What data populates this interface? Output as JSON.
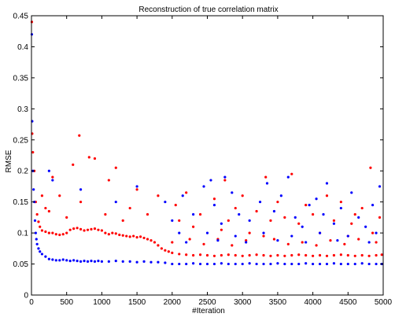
{
  "chart_data": {
    "type": "scatter",
    "title": "Reconstruction of true correlation matrix",
    "xlabel": "#Iteration",
    "ylabel": "RMSE",
    "xlim": [
      0,
      5000
    ],
    "ylim": [
      0,
      0.45
    ],
    "x_ticks": [
      0,
      500,
      1000,
      1500,
      2000,
      2500,
      3000,
      3500,
      4000,
      4500,
      5000
    ],
    "y_ticks": [
      0,
      0.05,
      0.1,
      0.15,
      0.2,
      0.25,
      0.3,
      0.35,
      0.4,
      0.45
    ],
    "grid": false,
    "legend": "none",
    "series": [
      {
        "color": "#ff0000",
        "marker": "dot",
        "points": [
          [
            5,
            0.44
          ],
          [
            10,
            0.26
          ],
          [
            20,
            0.23
          ],
          [
            40,
            0.2
          ],
          [
            60,
            0.15
          ],
          [
            80,
            0.13
          ],
          [
            100,
            0.118
          ],
          [
            120,
            0.11
          ],
          [
            150,
            0.104
          ],
          [
            200,
            0.102
          ],
          [
            250,
            0.1
          ],
          [
            300,
            0.1
          ],
          [
            350,
            0.098
          ],
          [
            400,
            0.097
          ],
          [
            450,
            0.098
          ],
          [
            500,
            0.1
          ],
          [
            550,
            0.105
          ],
          [
            600,
            0.107
          ],
          [
            650,
            0.108
          ],
          [
            700,
            0.106
          ],
          [
            750,
            0.104
          ],
          [
            800,
            0.105
          ],
          [
            850,
            0.106
          ],
          [
            900,
            0.107
          ],
          [
            950,
            0.105
          ],
          [
            1000,
            0.104
          ],
          [
            1050,
            0.1
          ],
          [
            1100,
            0.098
          ],
          [
            1150,
            0.1
          ],
          [
            1200,
            0.099
          ],
          [
            1250,
            0.097
          ],
          [
            1300,
            0.096
          ],
          [
            1350,
            0.095
          ],
          [
            1400,
            0.094
          ],
          [
            1450,
            0.095
          ],
          [
            1500,
            0.093
          ],
          [
            1550,
            0.094
          ],
          [
            1600,
            0.092
          ],
          [
            1650,
            0.09
          ],
          [
            1700,
            0.088
          ],
          [
            1750,
            0.085
          ],
          [
            1800,
            0.08
          ],
          [
            1850,
            0.075
          ],
          [
            1900,
            0.072
          ],
          [
            1950,
            0.07
          ],
          [
            2000,
            0.068
          ],
          [
            2100,
            0.066
          ],
          [
            2200,
            0.065
          ],
          [
            2300,
            0.064
          ],
          [
            2400,
            0.065
          ],
          [
            2500,
            0.064
          ],
          [
            2600,
            0.063
          ],
          [
            2700,
            0.064
          ],
          [
            2800,
            0.065
          ],
          [
            2900,
            0.064
          ],
          [
            3000,
            0.063
          ],
          [
            3100,
            0.064
          ],
          [
            3200,
            0.065
          ],
          [
            3300,
            0.064
          ],
          [
            3400,
            0.063
          ],
          [
            3500,
            0.064
          ],
          [
            3600,
            0.063
          ],
          [
            3700,
            0.064
          ],
          [
            3800,
            0.065
          ],
          [
            3900,
            0.064
          ],
          [
            4000,
            0.063
          ],
          [
            4100,
            0.064
          ],
          [
            4200,
            0.063
          ],
          [
            4300,
            0.064
          ],
          [
            4400,
            0.065
          ],
          [
            4500,
            0.064
          ],
          [
            4600,
            0.063
          ],
          [
            4700,
            0.064
          ],
          [
            4800,
            0.063
          ],
          [
            4900,
            0.064
          ],
          [
            4980,
            0.065
          ],
          [
            680,
            0.257
          ],
          [
            900,
            0.22
          ],
          [
            820,
            0.222
          ],
          [
            590,
            0.21
          ],
          [
            1200,
            0.205
          ],
          [
            300,
            0.19
          ],
          [
            3330,
            0.19
          ],
          [
            3700,
            0.195
          ],
          [
            4820,
            0.205
          ],
          [
            2750,
            0.185
          ],
          [
            1100,
            0.185
          ],
          [
            400,
            0.16
          ],
          [
            1500,
            0.17
          ],
          [
            2200,
            0.165
          ],
          [
            3000,
            0.16
          ],
          [
            4200,
            0.16
          ],
          [
            2600,
            0.155
          ],
          [
            3500,
            0.15
          ],
          [
            4400,
            0.15
          ],
          [
            1800,
            0.16
          ],
          [
            2050,
            0.145
          ],
          [
            3900,
            0.145
          ],
          [
            4700,
            0.14
          ],
          [
            700,
            0.15
          ],
          [
            1400,
            0.14
          ],
          [
            2900,
            0.14
          ],
          [
            3200,
            0.135
          ],
          [
            4000,
            0.13
          ],
          [
            4600,
            0.13
          ],
          [
            250,
            0.135
          ],
          [
            1650,
            0.13
          ],
          [
            2400,
            0.13
          ],
          [
            3600,
            0.125
          ],
          [
            4950,
            0.125
          ],
          [
            1050,
            0.13
          ],
          [
            2800,
            0.12
          ],
          [
            3400,
            0.12
          ],
          [
            4300,
            0.12
          ],
          [
            500,
            0.125
          ],
          [
            1300,
            0.12
          ],
          [
            2100,
            0.12
          ],
          [
            3800,
            0.115
          ],
          [
            4550,
            0.115
          ],
          [
            150,
            0.16
          ],
          [
            200,
            0.14
          ],
          [
            2300,
            0.11
          ],
          [
            2700,
            0.105
          ],
          [
            3100,
            0.1
          ],
          [
            3300,
            0.095
          ],
          [
            4100,
            0.1
          ],
          [
            4500,
            0.095
          ],
          [
            4850,
            0.1
          ],
          [
            2250,
            0.09
          ],
          [
            2650,
            0.09
          ],
          [
            3050,
            0.088
          ],
          [
            3450,
            0.09
          ],
          [
            3850,
            0.085
          ],
          [
            4250,
            0.088
          ],
          [
            4650,
            0.09
          ],
          [
            2000,
            0.085
          ],
          [
            2450,
            0.082
          ],
          [
            2850,
            0.08
          ],
          [
            3650,
            0.082
          ],
          [
            4050,
            0.08
          ],
          [
            4450,
            0.082
          ],
          [
            4900,
            0.085
          ]
        ]
      },
      {
        "color": "#0000ff",
        "marker": "dot",
        "points": [
          [
            5,
            0.42
          ],
          [
            10,
            0.28
          ],
          [
            20,
            0.2
          ],
          [
            30,
            0.17
          ],
          [
            40,
            0.15
          ],
          [
            50,
            0.12
          ],
          [
            60,
            0.1
          ],
          [
            70,
            0.09
          ],
          [
            80,
            0.082
          ],
          [
            100,
            0.075
          ],
          [
            120,
            0.07
          ],
          [
            150,
            0.066
          ],
          [
            200,
            0.062
          ],
          [
            250,
            0.058
          ],
          [
            300,
            0.057
          ],
          [
            350,
            0.056
          ],
          [
            400,
            0.056
          ],
          [
            450,
            0.057
          ],
          [
            500,
            0.056
          ],
          [
            550,
            0.055
          ],
          [
            600,
            0.056
          ],
          [
            650,
            0.055
          ],
          [
            700,
            0.054
          ],
          [
            750,
            0.055
          ],
          [
            800,
            0.054
          ],
          [
            850,
            0.055
          ],
          [
            900,
            0.054
          ],
          [
            950,
            0.055
          ],
          [
            1000,
            0.054
          ],
          [
            1100,
            0.054
          ],
          [
            1200,
            0.055
          ],
          [
            1300,
            0.054
          ],
          [
            1400,
            0.054
          ],
          [
            1500,
            0.053
          ],
          [
            1600,
            0.054
          ],
          [
            1700,
            0.053
          ],
          [
            1800,
            0.053
          ],
          [
            1900,
            0.052
          ],
          [
            2000,
            0.05
          ],
          [
            2100,
            0.05
          ],
          [
            2200,
            0.05
          ],
          [
            2300,
            0.051
          ],
          [
            2400,
            0.05
          ],
          [
            2500,
            0.05
          ],
          [
            2600,
            0.05
          ],
          [
            2700,
            0.051
          ],
          [
            2800,
            0.05
          ],
          [
            2900,
            0.05
          ],
          [
            3000,
            0.05
          ],
          [
            3100,
            0.051
          ],
          [
            3200,
            0.05
          ],
          [
            3300,
            0.05
          ],
          [
            3400,
            0.05
          ],
          [
            3500,
            0.051
          ],
          [
            3600,
            0.05
          ],
          [
            3700,
            0.05
          ],
          [
            3800,
            0.05
          ],
          [
            3900,
            0.051
          ],
          [
            4000,
            0.05
          ],
          [
            4100,
            0.05
          ],
          [
            4200,
            0.05
          ],
          [
            4300,
            0.051
          ],
          [
            4400,
            0.05
          ],
          [
            4500,
            0.05
          ],
          [
            4600,
            0.05
          ],
          [
            4700,
            0.051
          ],
          [
            4800,
            0.05
          ],
          [
            4900,
            0.05
          ],
          [
            4980,
            0.05
          ],
          [
            250,
            0.2
          ],
          [
            300,
            0.185
          ],
          [
            2550,
            0.185
          ],
          [
            2750,
            0.19
          ],
          [
            3650,
            0.19
          ],
          [
            4200,
            0.18
          ],
          [
            700,
            0.17
          ],
          [
            1500,
            0.175
          ],
          [
            2450,
            0.175
          ],
          [
            3350,
            0.18
          ],
          [
            4950,
            0.175
          ],
          [
            2850,
            0.165
          ],
          [
            2150,
            0.16
          ],
          [
            3550,
            0.16
          ],
          [
            4050,
            0.155
          ],
          [
            4550,
            0.165
          ],
          [
            1200,
            0.15
          ],
          [
            1900,
            0.15
          ],
          [
            2600,
            0.145
          ],
          [
            3250,
            0.15
          ],
          [
            3950,
            0.145
          ],
          [
            4400,
            0.14
          ],
          [
            4850,
            0.145
          ],
          [
            2300,
            0.13
          ],
          [
            2950,
            0.13
          ],
          [
            3450,
            0.135
          ],
          [
            3750,
            0.125
          ],
          [
            4150,
            0.13
          ],
          [
            4650,
            0.125
          ],
          [
            2000,
            0.12
          ],
          [
            2700,
            0.115
          ],
          [
            3100,
            0.12
          ],
          [
            3850,
            0.11
          ],
          [
            4300,
            0.115
          ],
          [
            4750,
            0.11
          ],
          [
            2100,
            0.1
          ],
          [
            2500,
            0.1
          ],
          [
            2900,
            0.095
          ],
          [
            3300,
            0.1
          ],
          [
            3700,
            0.095
          ],
          [
            4100,
            0.1
          ],
          [
            4500,
            0.095
          ],
          [
            4900,
            0.1
          ],
          [
            2200,
            0.085
          ],
          [
            2650,
            0.088
          ],
          [
            3050,
            0.085
          ],
          [
            3500,
            0.088
          ],
          [
            3900,
            0.085
          ],
          [
            4350,
            0.088
          ],
          [
            4800,
            0.085
          ]
        ]
      }
    ]
  }
}
